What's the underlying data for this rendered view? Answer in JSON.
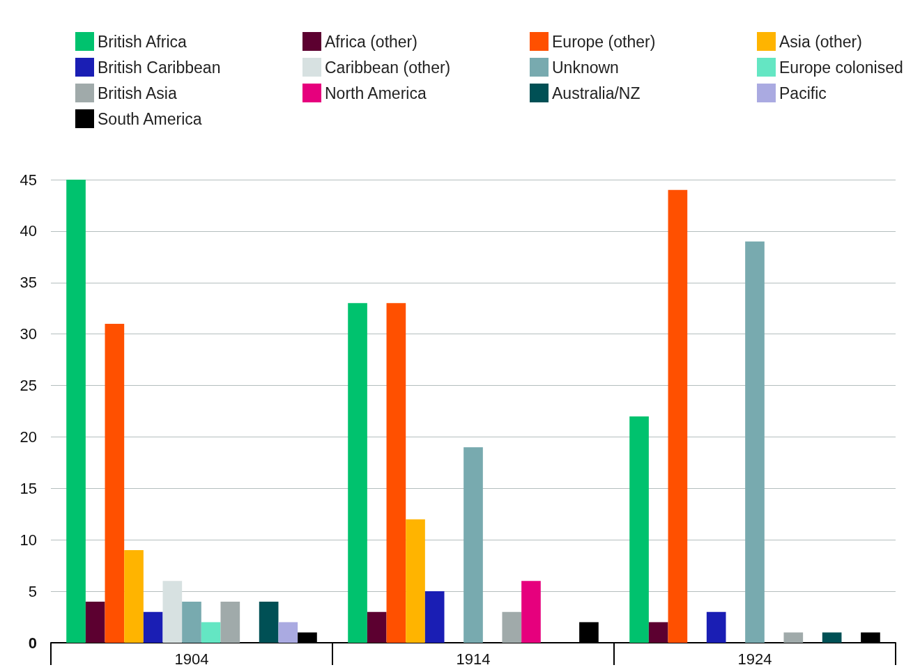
{
  "chart_data": {
    "type": "bar",
    "categories": [
      "1904",
      "1914",
      "1924"
    ],
    "series": [
      {
        "name": "British Africa",
        "color": "#00c26e",
        "values": [
          45,
          33,
          22
        ]
      },
      {
        "name": "Africa (other)",
        "color": "#5c0030",
        "values": [
          4,
          3,
          2
        ]
      },
      {
        "name": "Europe (other)",
        "color": "#ff5000",
        "values": [
          31,
          33,
          44
        ]
      },
      {
        "name": "Asia (other)",
        "color": "#ffb400",
        "values": [
          9,
          12,
          0
        ]
      },
      {
        "name": "British Caribbean",
        "color": "#1a1eb4",
        "values": [
          3,
          5,
          3
        ]
      },
      {
        "name": "Caribbean (other)",
        "color": "#d7e1e1",
        "values": [
          6,
          0,
          0
        ]
      },
      {
        "name": "Unknown",
        "color": "#78aaaf",
        "values": [
          4,
          19,
          39
        ]
      },
      {
        "name": "Europe colonised",
        "color": "#64e6c3",
        "values": [
          2,
          0,
          0
        ]
      },
      {
        "name": "British Asia",
        "color": "#a0aaaa",
        "values": [
          4,
          3,
          1
        ]
      },
      {
        "name": "North America",
        "color": "#e6007d",
        "values": [
          0,
          6,
          0
        ]
      },
      {
        "name": "Australia/NZ",
        "color": "#005055",
        "values": [
          4,
          0,
          1
        ]
      },
      {
        "name": "Pacific",
        "color": "#aaaae1",
        "values": [
          2,
          0,
          0
        ]
      },
      {
        "name": "South America",
        "color": "#000000",
        "values": [
          1,
          2,
          1
        ]
      }
    ],
    "ylim": [
      0,
      45
    ],
    "yticks": [
      0,
      5,
      10,
      15,
      20,
      25,
      30,
      35,
      40,
      45
    ],
    "grid": "y",
    "legend": "top"
  }
}
